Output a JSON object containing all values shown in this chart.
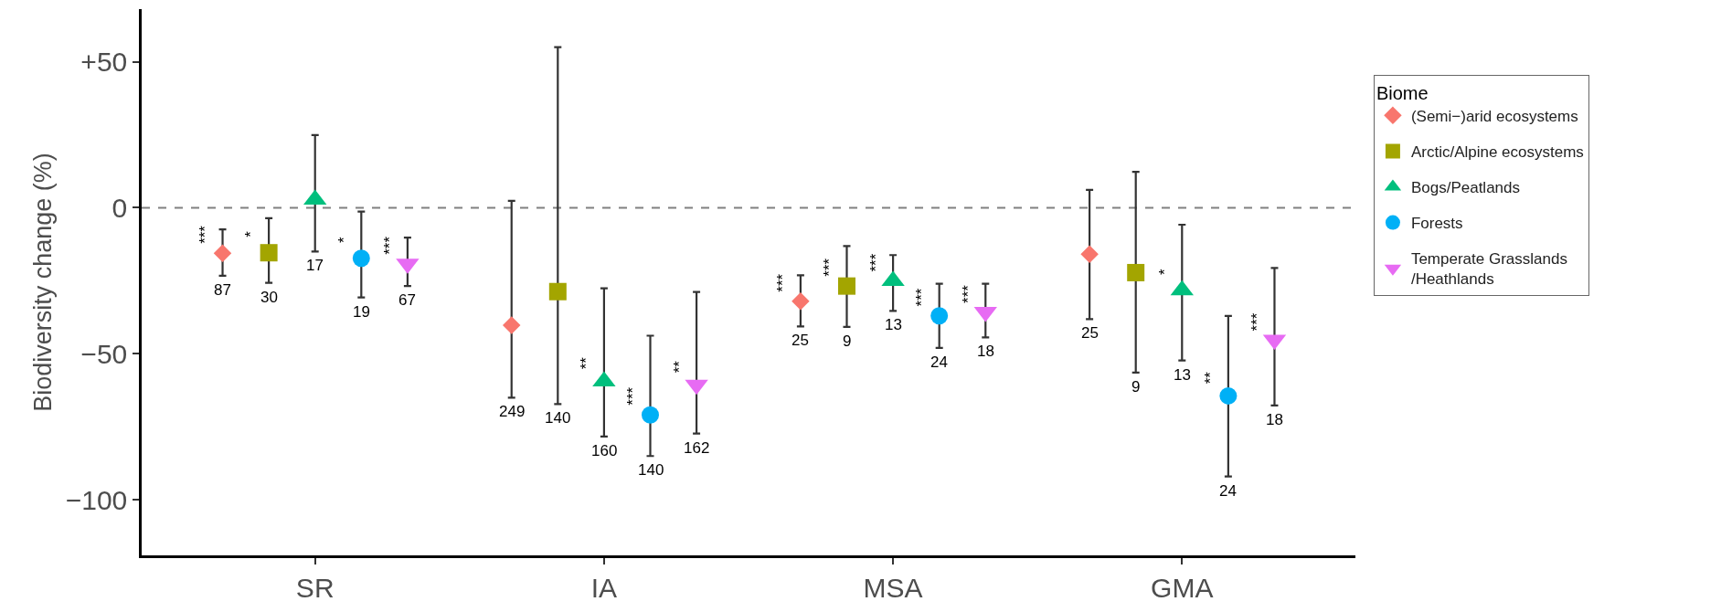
{
  "chart_data": {
    "type": "scatter",
    "ylabel": "Biodiversity change (%)",
    "legend_title": "Biome",
    "legend": "right",
    "grid": false,
    "categories": [
      "SR",
      "IA",
      "MSA",
      "GMA"
    ],
    "ylim": [
      -119,
      68
    ],
    "yticks": [
      {
        "value": 50,
        "label": "+50"
      },
      0,
      {
        "value": -50,
        "label": "−50"
      },
      {
        "value": -100,
        "label": "−100"
      }
    ],
    "ref_lines": [
      {
        "axis": "y",
        "value": 0,
        "color": "#808080",
        "line_style": "dashed"
      }
    ],
    "series": [
      {
        "name": "(Semi−)arid ecosystems",
        "color": "#f8766d",
        "marker": "diamond",
        "values": [
          -15.6,
          -40.2,
          -32.0,
          -15.9
        ],
        "errors": [
          [
            -23.3,
            -7.4
          ],
          [
            -65.0,
            2.4
          ],
          [
            -40.6,
            -23.1
          ],
          [
            -38.1,
            6.1
          ]
        ]
      },
      {
        "name": "Arctic/Alpine ecosystems",
        "color": "#a3a500",
        "marker": "square",
        "values": [
          -15.4,
          -28.7,
          -26.8,
          -22.2
        ],
        "errors": [
          [
            -25.7,
            -3.6
          ],
          [
            -67.2,
            55.0
          ],
          [
            -40.8,
            -13.1
          ],
          [
            -56.4,
            12.3
          ]
        ]
      },
      {
        "name": "Bogs/Peatlands",
        "color": "#00bf7d",
        "marker": "triangle",
        "values": [
          2.8,
          -59.4,
          -25.0,
          -28.2
        ],
        "errors": [
          [
            -15.0,
            24.9
          ],
          [
            -78.3,
            -27.6
          ],
          [
            -35.3,
            -16.2
          ],
          [
            -52.3,
            -5.8
          ]
        ]
      },
      {
        "name": "Forests",
        "color": "#00b0f6",
        "marker": "circle",
        "values": [
          -17.3,
          -70.9,
          -37.0,
          -64.4
        ],
        "errors": [
          [
            -30.7,
            -1.3
          ],
          [
            -85.0,
            -43.8
          ],
          [
            -48.0,
            -26.0
          ],
          [
            -92.0,
            -37.0
          ]
        ]
      },
      {
        "name": "Temperate Grasslands\n/Heathlands",
        "color": "#e76bf3",
        "marker": "triangle-down",
        "values": [
          -19.2,
          -60.6,
          -35.7,
          -45.2
        ],
        "errors": [
          [
            -26.8,
            -10.2
          ],
          [
            -77.3,
            -28.8
          ],
          [
            -44.4,
            -26.0
          ],
          [
            -67.7,
            -20.6
          ]
        ]
      }
    ],
    "annotations": [
      "***",
      "87",
      "*",
      "30",
      "17",
      "*",
      "19",
      "***",
      "67",
      "249",
      "140",
      "**",
      "160",
      "***",
      "140",
      "**",
      "162",
      "***",
      "25",
      "***",
      "9",
      "***",
      "13",
      "***",
      "24",
      "***",
      "18",
      "25",
      "9",
      "*",
      "13",
      "**",
      "24",
      "***",
      "18"
    ]
  }
}
